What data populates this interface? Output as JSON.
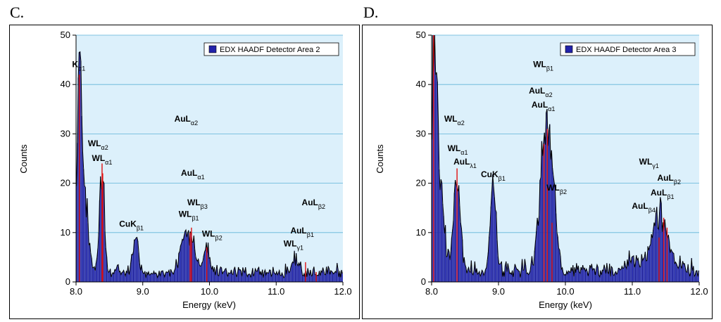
{
  "chart_data": [
    {
      "panel": "C.",
      "type": "bar",
      "legend": "EDX HAADF Detector Area 2",
      "xlabel": "Energy (keV)",
      "ylabel": "Counts",
      "xlim": [
        8.0,
        12.0
      ],
      "ylim": [
        0,
        50
      ],
      "xticks": [
        "8.0",
        "9.0",
        "10.0",
        "11.0",
        "12.0"
      ],
      "xtick_values": [
        8.0,
        9.0,
        10.0,
        11.0,
        12.0
      ],
      "yticks": [
        "0",
        "10",
        "20",
        "30",
        "40",
        "50"
      ],
      "ytick_values": [
        0,
        10,
        20,
        30,
        40,
        50
      ],
      "peaks": [
        {
          "center": 8.05,
          "height": 36,
          "width": 0.03
        },
        {
          "center": 8.12,
          "height": 16,
          "width": 0.06
        },
        {
          "center": 8.39,
          "height": 22,
          "width": 0.035
        },
        {
          "center": 8.89,
          "height": 8,
          "width": 0.04
        },
        {
          "center": 9.67,
          "height": 9,
          "width": 0.09
        },
        {
          "center": 9.96,
          "height": 5,
          "width": 0.05
        },
        {
          "center": 11.29,
          "height": 3,
          "width": 0.05
        }
      ],
      "baseline": 1.8,
      "noise": 1.6,
      "seed": 7,
      "markers": [
        {
          "x": 8.05,
          "y": 42
        },
        {
          "x": 8.39,
          "y": 24
        },
        {
          "x": 8.4,
          "y": 22
        },
        {
          "x": 9.73,
          "y": 11
        },
        {
          "x": 9.71,
          "y": 10
        },
        {
          "x": 9.96,
          "y": 7
        },
        {
          "x": 11.44,
          "y": 4
        },
        {
          "x": 11.6,
          "y": 2
        }
      ],
      "annotations": [
        {
          "base": "K",
          "sub": "α1",
          "x": 8.04,
          "y": 43.5
        },
        {
          "base": "WL",
          "sub": "α2",
          "x": 8.33,
          "y": 27.5
        },
        {
          "base": "WL",
          "sub": "α1",
          "x": 8.39,
          "y": 24.5
        },
        {
          "base": "AuL",
          "sub": "α2",
          "x": 9.65,
          "y": 32.5
        },
        {
          "base": "AuL",
          "sub": "α1",
          "x": 9.75,
          "y": 21.5
        },
        {
          "base": "CuK",
          "sub": "β1",
          "x": 8.83,
          "y": 11.2
        },
        {
          "base": "WL",
          "sub": "β3",
          "x": 9.82,
          "y": 15.5
        },
        {
          "base": "WL",
          "sub": "β1",
          "x": 9.69,
          "y": 13.2
        },
        {
          "base": "WL",
          "sub": "β2",
          "x": 10.04,
          "y": 9.2
        },
        {
          "base": "AuL",
          "sub": "β2",
          "x": 11.56,
          "y": 15.5
        },
        {
          "base": "AuL",
          "sub": "β1",
          "x": 11.39,
          "y": 9.8
        },
        {
          "base": "WL",
          "sub": "γ1",
          "x": 11.26,
          "y": 7.2
        }
      ]
    },
    {
      "panel": "D.",
      "type": "bar",
      "legend": "EDX HAADF Detector Area 3",
      "xlabel": "Energy (keV)",
      "ylabel": "Counts",
      "xlim": [
        8.0,
        12.0
      ],
      "ylim": [
        0,
        50
      ],
      "xticks": [
        "8.0",
        "9.0",
        "10.0",
        "11.0",
        "12.0"
      ],
      "xtick_values": [
        8.0,
        9.0,
        10.0,
        11.0,
        12.0
      ],
      "yticks": [
        "0",
        "10",
        "20",
        "30",
        "40",
        "50"
      ],
      "ytick_values": [
        0,
        10,
        20,
        30,
        40,
        50
      ],
      "peaks": [
        {
          "center": 8.04,
          "height": 48,
          "width": 0.035
        },
        {
          "center": 8.12,
          "height": 18,
          "width": 0.06
        },
        {
          "center": 8.38,
          "height": 19,
          "width": 0.05
        },
        {
          "center": 8.92,
          "height": 18,
          "width": 0.04
        },
        {
          "center": 9.7,
          "height": 28,
          "width": 0.08
        },
        {
          "center": 9.83,
          "height": 8,
          "width": 0.05
        },
        {
          "center": 11.42,
          "height": 12,
          "width": 0.12
        },
        {
          "center": 11.0,
          "height": 2,
          "width": 0.1
        }
      ],
      "baseline": 2.2,
      "noise": 2.2,
      "seed": 13,
      "markers": [
        {
          "x": 8.03,
          "y": 50
        },
        {
          "x": 8.38,
          "y": 23
        },
        {
          "x": 9.73,
          "y": 31
        },
        {
          "x": 9.68,
          "y": 28
        },
        {
          "x": 9.8,
          "y": 12
        },
        {
          "x": 11.47,
          "y": 13
        },
        {
          "x": 11.52,
          "y": 11
        },
        {
          "x": 11.4,
          "y": 9
        }
      ],
      "annotations": [
        {
          "base": "WL",
          "sub": "α2",
          "x": 8.34,
          "y": 32.5
        },
        {
          "base": "WL",
          "sub": "α1",
          "x": 8.39,
          "y": 26.5
        },
        {
          "base": "AuL",
          "sub": "λ1",
          "x": 8.5,
          "y": 23.8
        },
        {
          "base": "CuK",
          "sub": "β1",
          "x": 8.92,
          "y": 21.2
        },
        {
          "base": "WL",
          "sub": "β1",
          "x": 9.67,
          "y": 43.5
        },
        {
          "base": "AuL",
          "sub": "α2",
          "x": 9.63,
          "y": 38.2
        },
        {
          "base": "AuL",
          "sub": "α1",
          "x": 9.67,
          "y": 35.3
        },
        {
          "base": "WL",
          "sub": "β2",
          "x": 9.87,
          "y": 18.5
        },
        {
          "base": "WL",
          "sub": "γ1",
          "x": 11.25,
          "y": 23.8
        },
        {
          "base": "AuL",
          "sub": "β2",
          "x": 11.55,
          "y": 20.5
        },
        {
          "base": "AuL",
          "sub": "β1",
          "x": 11.45,
          "y": 17.5
        },
        {
          "base": "AuL",
          "sub": "β4",
          "x": 11.17,
          "y": 14.8
        }
      ]
    }
  ]
}
